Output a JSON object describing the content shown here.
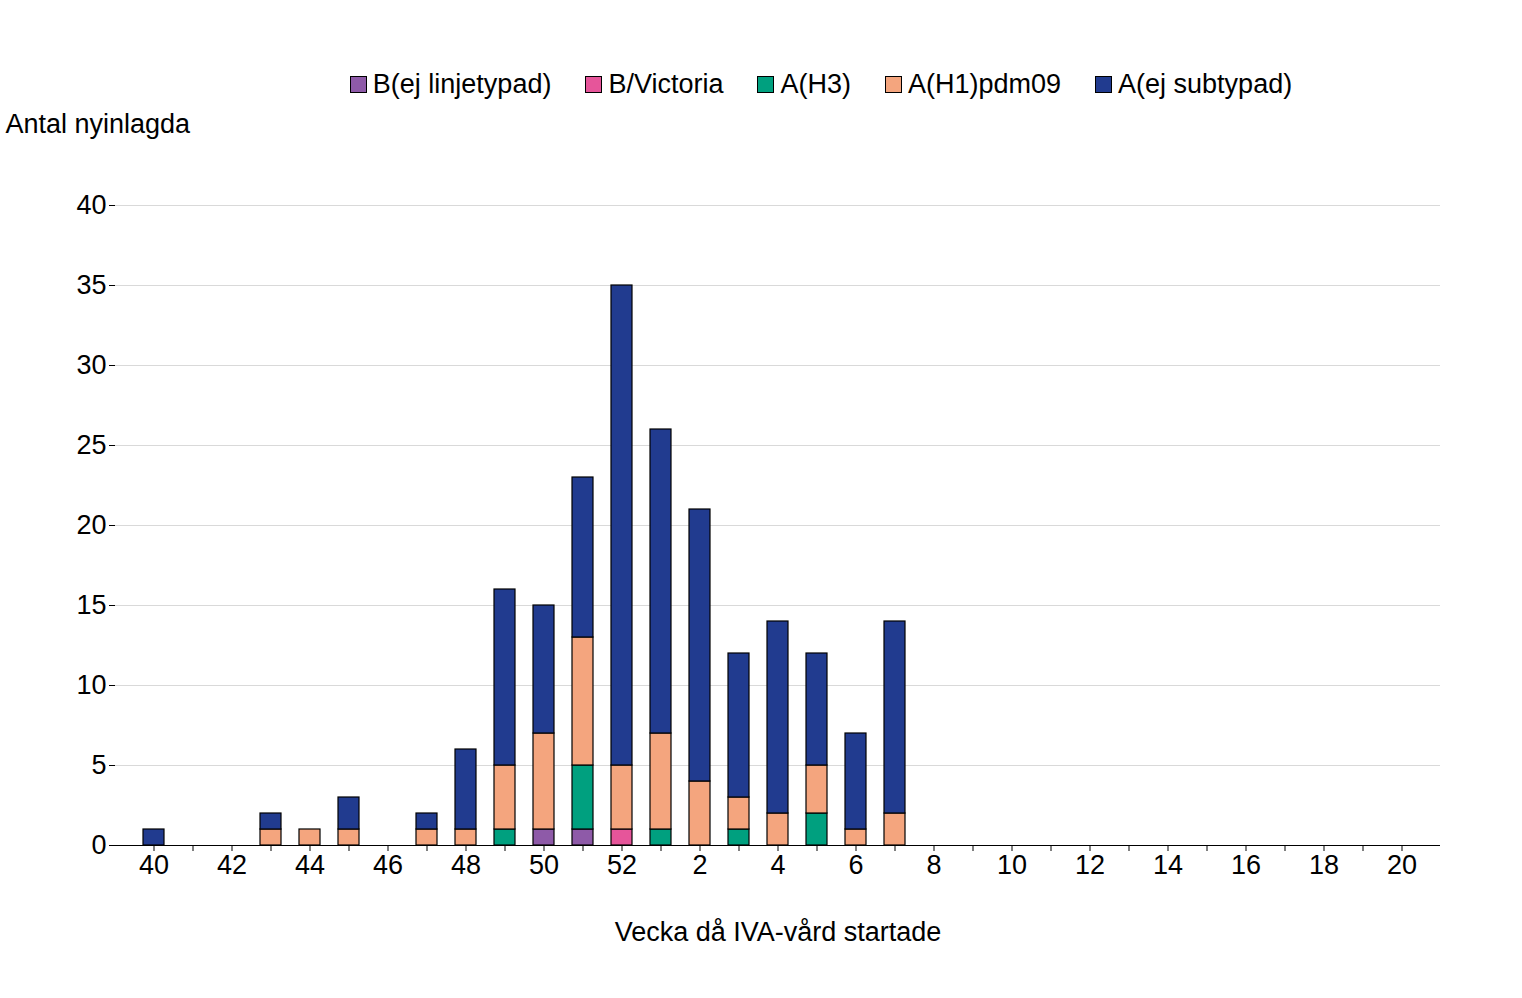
{
  "chart_data": {
    "type": "bar",
    "stacked": true,
    "grid": true,
    "legend": "top",
    "x_label": "Vecka då IVA-vård startade",
    "y_label": "Antal nyinlagda",
    "ylim": [
      0,
      40
    ],
    "yticks": [
      0,
      5,
      10,
      15,
      20,
      25,
      30,
      35,
      40
    ],
    "categories": [
      "40",
      null,
      "42",
      null,
      "44",
      null,
      "46",
      null,
      "48",
      null,
      "50",
      null,
      "52",
      null,
      "2",
      null,
      "4",
      null,
      "6",
      null,
      "8",
      null,
      "10",
      null,
      "12",
      null,
      "14",
      null,
      "16",
      null,
      "18",
      null,
      "20"
    ],
    "series": [
      {
        "name": "B(ej linjetypad)",
        "color": "#8e5aa8",
        "values": [
          0,
          0,
          0,
          0,
          0,
          0,
          0,
          0,
          0,
          0,
          1,
          1,
          0,
          0,
          0,
          0,
          0,
          0,
          0,
          0,
          null,
          null,
          null,
          null,
          null,
          null,
          null,
          null,
          null,
          null,
          null,
          null,
          null
        ]
      },
      {
        "name": "B/Victoria",
        "color": "#e6559a",
        "values": [
          0,
          0,
          0,
          0,
          0,
          0,
          0,
          0,
          0,
          0,
          0,
          0,
          1,
          0,
          0,
          0,
          0,
          0,
          0,
          0,
          null,
          null,
          null,
          null,
          null,
          null,
          null,
          null,
          null,
          null,
          null,
          null,
          null
        ]
      },
      {
        "name": "A(H3)",
        "color": "#00a07f",
        "values": [
          0,
          0,
          0,
          0,
          0,
          0,
          0,
          0,
          0,
          1,
          0,
          4,
          0,
          1,
          0,
          1,
          0,
          2,
          0,
          0,
          null,
          null,
          null,
          null,
          null,
          null,
          null,
          null,
          null,
          null,
          null,
          null,
          null
        ]
      },
      {
        "name": "A(H1)pdm09",
        "color": "#f4a57e",
        "values": [
          0,
          0,
          0,
          1,
          1,
          1,
          0,
          1,
          1,
          4,
          6,
          8,
          4,
          6,
          4,
          2,
          2,
          3,
          1,
          2,
          null,
          null,
          null,
          null,
          null,
          null,
          null,
          null,
          null,
          null,
          null,
          null,
          null
        ]
      },
      {
        "name": "A(ej subtypad)",
        "color": "#213b8f",
        "values": [
          1,
          0,
          0,
          1,
          0,
          2,
          0,
          1,
          5,
          11,
          8,
          10,
          30,
          19,
          17,
          9,
          12,
          7,
          6,
          12,
          null,
          null,
          null,
          null,
          null,
          null,
          null,
          null,
          null,
          null,
          null,
          null,
          null
        ]
      }
    ]
  }
}
